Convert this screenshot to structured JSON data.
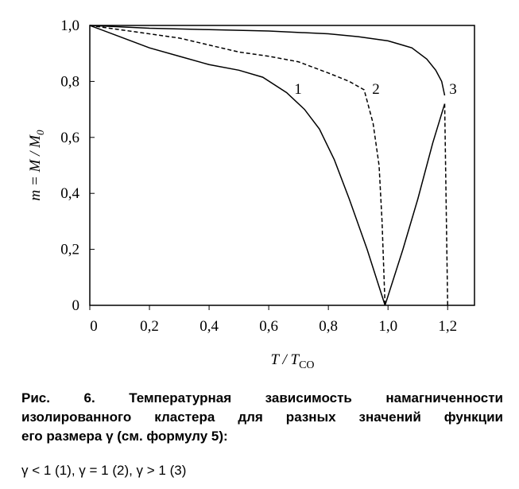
{
  "chart_data": {
    "type": "line",
    "ylabel": "m = M / M",
    "ylabel_sub": "0",
    "xlabel": "T / T",
    "xlabel_sub": "CO",
    "xlim": [
      0,
      1.29
    ],
    "ylim": [
      0,
      1.0
    ],
    "xticks": [
      0,
      {
        "value": 0.2,
        "label": "0,2"
      },
      {
        "value": 0.4,
        "label": "0,4"
      },
      {
        "value": 0.6,
        "label": "0,6"
      },
      {
        "value": 0.8,
        "label": "0,8"
      },
      {
        "value": 1.0,
        "label": "1,0"
      },
      {
        "value": 1.2,
        "label": "1,2"
      }
    ],
    "yticks": [
      0,
      {
        "value": 0.2,
        "label": "0,2"
      },
      {
        "value": 0.4,
        "label": "0,4"
      },
      {
        "value": 0.6,
        "label": "0,6"
      },
      {
        "value": 0.8,
        "label": "0,8"
      },
      {
        "value": 1.0,
        "label": "1,0"
      }
    ],
    "series": [
      {
        "name": "1",
        "color": "#000000",
        "dash": false,
        "x": [
          0,
          0.1,
          0.2,
          0.3,
          0.4,
          0.5,
          0.58,
          0.66,
          0.72,
          0.77,
          0.82,
          0.87,
          0.93,
          0.99
        ],
        "values": [
          1.0,
          0.96,
          0.92,
          0.89,
          0.86,
          0.84,
          0.815,
          0.76,
          0.7,
          0.63,
          0.52,
          0.38,
          0.2,
          0
        ]
      },
      {
        "name": "2",
        "color": "#000000",
        "dash": true,
        "x": [
          0,
          0.1,
          0.2,
          0.3,
          0.4,
          0.5,
          0.6,
          0.7,
          0.8,
          0.87,
          0.92,
          0.95,
          0.97,
          0.98,
          0.99
        ],
        "values": [
          1.0,
          0.985,
          0.97,
          0.955,
          0.93,
          0.905,
          0.89,
          0.87,
          0.83,
          0.8,
          0.77,
          0.65,
          0.5,
          0.3,
          0
        ]
      },
      {
        "name": "3",
        "color": "#000000",
        "dash": false,
        "x": [
          0,
          0.2,
          0.4,
          0.6,
          0.8,
          0.9,
          1.0,
          1.08,
          1.13,
          1.16,
          1.18,
          1.19
        ],
        "values": [
          1.0,
          0.99,
          0.985,
          0.98,
          0.97,
          0.96,
          0.945,
          0.92,
          0.88,
          0.84,
          0.8,
          0.75
        ]
      },
      {
        "color": "#000000",
        "dash": false,
        "x": [
          0.99,
          1.05,
          1.1,
          1.15,
          1.19
        ],
        "values": [
          0,
          0.2,
          0.38,
          0.58,
          0.72
        ]
      },
      {
        "color": "#000000",
        "dash": true,
        "x": [
          1.19,
          1.2
        ],
        "values": [
          0.72,
          0
        ]
      }
    ]
  },
  "caption": {
    "lines": [
      "Рис. 6. Температурная зависимость намагниченности",
      "изолированного кластера для разных значений функции",
      "его размера γ (см. формулу 5):"
    ],
    "note": "γ < 1 (1), γ = 1 (2), γ > 1 (3)"
  }
}
